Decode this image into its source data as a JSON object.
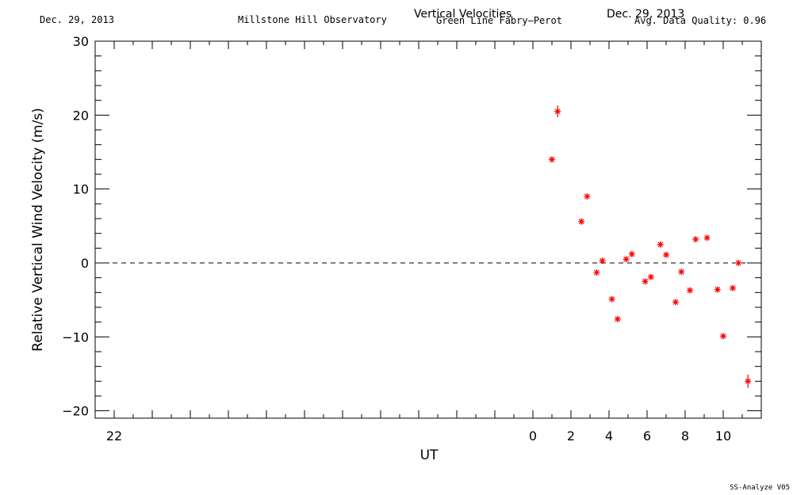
{
  "header": {
    "date_left": "Dec. 29, 2013",
    "observatory": "Millstone Hill Observatory",
    "title": "Vertical Velocities",
    "date_right": "Dec. 29, 2013",
    "instrument": "Green Line Fabry—Perot",
    "quality": "Avg. Data Quality: 0.96"
  },
  "footer": {
    "version": "SS-Analyze V05"
  },
  "chart_data": {
    "type": "scatter",
    "xlabel": "UT",
    "ylabel": "Relative Vertical Wind Velocity (m/s)",
    "xlim": [
      -23.0,
      12.0
    ],
    "ylim": [
      -21,
      30
    ],
    "x_ticks": [
      -22,
      -20,
      -18,
      -16,
      -14,
      -12,
      -10,
      -8,
      -6,
      -4,
      -2,
      0,
      2,
      4,
      6,
      8,
      10,
      12
    ],
    "x_tick_labels": [
      "22",
      "",
      "",
      "",
      "",
      "",
      "",
      "",
      "",
      "",
      "",
      "0",
      "2",
      "4",
      "6",
      "8",
      "10",
      ""
    ],
    "y_ticks": [
      -20,
      -10,
      0,
      10,
      20,
      30
    ],
    "y_tick_labels": [
      "−20",
      "−10",
      "0",
      "10",
      "20",
      "30"
    ],
    "marker_color": "#ff0000",
    "zero_line": "dashed",
    "series": [
      {
        "points": [
          {
            "x": 1.0,
            "y": 14.0,
            "err": 0.4
          },
          {
            "x": 1.3,
            "y": 20.5,
            "err": 0.8
          },
          {
            "x": 2.55,
            "y": 5.6,
            "err": 0.4
          },
          {
            "x": 2.85,
            "y": 9.0,
            "err": 0.4
          },
          {
            "x": 3.35,
            "y": -1.3,
            "err": 0.4
          },
          {
            "x": 3.65,
            "y": 0.3,
            "err": 0.4
          },
          {
            "x": 4.15,
            "y": -4.9,
            "err": 0.4
          },
          {
            "x": 4.45,
            "y": -7.6,
            "err": 0.4
          },
          {
            "x": 4.9,
            "y": 0.5,
            "err": 0.4
          },
          {
            "x": 5.2,
            "y": 1.2,
            "err": 0.4
          },
          {
            "x": 5.9,
            "y": -2.5,
            "err": 0.4
          },
          {
            "x": 6.2,
            "y": -1.9,
            "err": 0.4
          },
          {
            "x": 6.7,
            "y": 2.5,
            "err": 0.4
          },
          {
            "x": 7.0,
            "y": 1.1,
            "err": 0.4
          },
          {
            "x": 7.5,
            "y": -5.3,
            "err": 0.4
          },
          {
            "x": 7.8,
            "y": -1.2,
            "err": 0.4
          },
          {
            "x": 8.25,
            "y": -3.7,
            "err": 0.4
          },
          {
            "x": 8.55,
            "y": 3.2,
            "err": 0.4
          },
          {
            "x": 9.15,
            "y": 3.4,
            "err": 0.4
          },
          {
            "x": 9.7,
            "y": -3.6,
            "err": 0.4
          },
          {
            "x": 10.0,
            "y": -9.9,
            "err": 0.4
          },
          {
            "x": 10.5,
            "y": -3.4,
            "err": 0.4
          },
          {
            "x": 10.8,
            "y": 0.0,
            "err": 0.4
          },
          {
            "x": 11.3,
            "y": -16.0,
            "err": 0.9
          }
        ]
      }
    ]
  }
}
